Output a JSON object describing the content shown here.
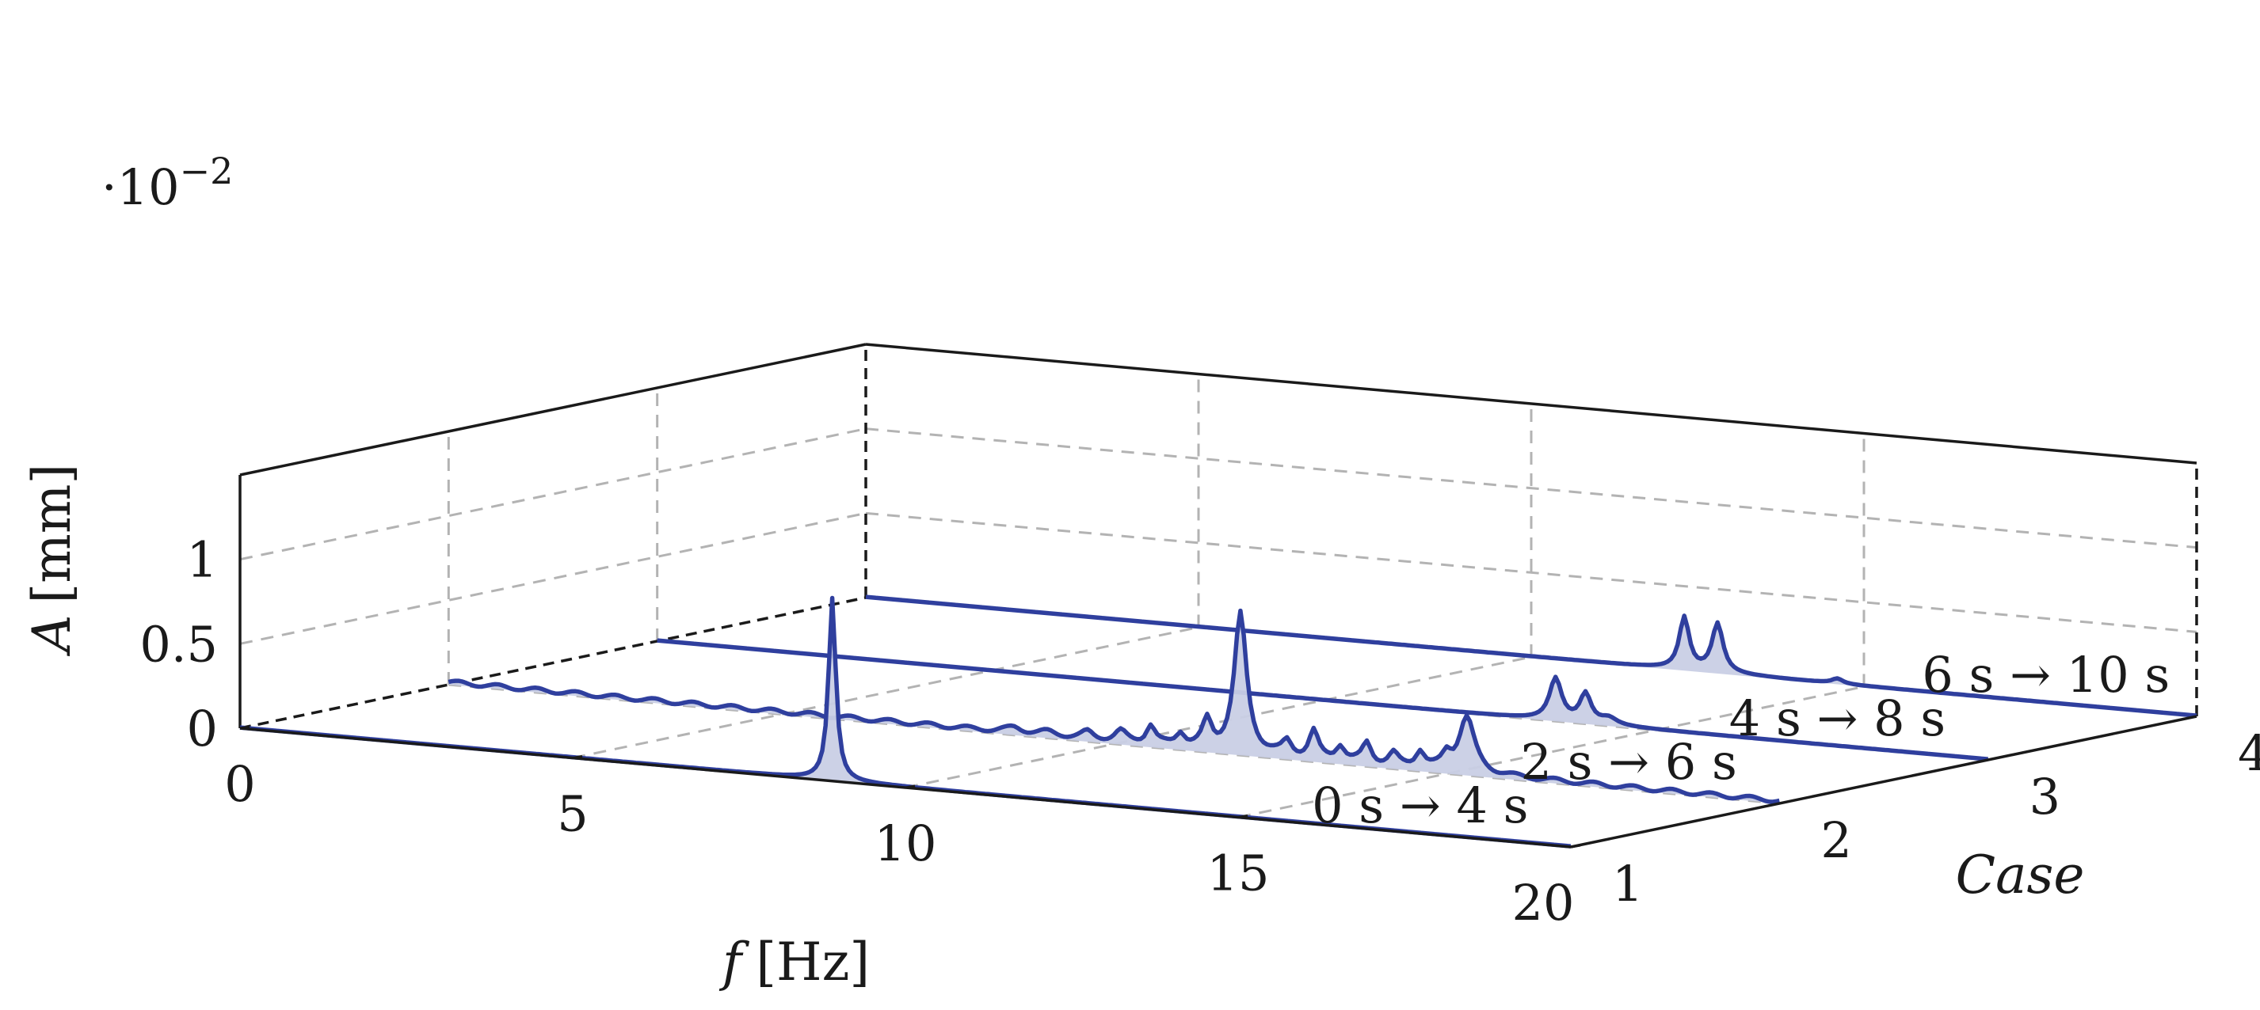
{
  "chart_data": {
    "type": "area",
    "title": "",
    "projection": "3d-waterfall",
    "multiplier_label": "·10",
    "multiplier_exponent": "−2",
    "axes": {
      "x": {
        "label_var": "f",
        "label_unit": "[Hz]",
        "range": [
          0,
          20
        ],
        "ticks": [
          0,
          5,
          10,
          15,
          20
        ],
        "tick_labels": [
          "0",
          "5",
          "10",
          "15",
          "20"
        ]
      },
      "y": {
        "label": "Case",
        "range": [
          1,
          4
        ],
        "ticks": [
          1,
          2,
          3,
          4
        ],
        "tick_labels": [
          "1",
          "2",
          "3",
          "4"
        ]
      },
      "z": {
        "label_var": "A",
        "label_unit": "[mm]",
        "range": [
          0,
          1.5
        ],
        "ticks": [
          0,
          0.5,
          1
        ],
        "tick_labels": [
          "0",
          "0.5",
          "1"
        ]
      }
    },
    "grid": true,
    "line_color": "#2f3f9e",
    "fill_color": "#c9cfe5",
    "series": [
      {
        "name": "0 s → 4 s",
        "name_parts": [
          "0",
          "s",
          "→",
          "4",
          "s"
        ],
        "case": 1,
        "peaks": [
          {
            "f": 8.9,
            "a": 1.08,
            "w": 0.13
          }
        ],
        "noise": []
      },
      {
        "name": "2 s → 6 s",
        "name_parts": [
          "2",
          "s",
          "→",
          "6",
          "s"
        ],
        "case": 2,
        "peaks": [
          {
            "f": 8.5,
            "a": 0.03,
            "w": 0.3
          },
          {
            "f": 9.0,
            "a": 0.02,
            "w": 0.3
          },
          {
            "f": 9.6,
            "a": 0.04,
            "w": 0.2
          },
          {
            "f": 10.1,
            "a": 0.06,
            "w": 0.2
          },
          {
            "f": 10.55,
            "a": 0.11,
            "w": 0.16
          },
          {
            "f": 11.0,
            "a": 0.08,
            "w": 0.16
          },
          {
            "f": 11.4,
            "a": 0.16,
            "w": 0.16
          },
          {
            "f": 11.9,
            "a": 0.82,
            "w": 0.22
          },
          {
            "f": 12.6,
            "a": 0.08,
            "w": 0.16
          },
          {
            "f": 13.0,
            "a": 0.16,
            "w": 0.16
          },
          {
            "f": 13.4,
            "a": 0.09,
            "w": 0.16
          },
          {
            "f": 13.8,
            "a": 0.12,
            "w": 0.16
          },
          {
            "f": 14.2,
            "a": 0.07,
            "w": 0.16
          },
          {
            "f": 14.6,
            "a": 0.1,
            "w": 0.16
          },
          {
            "f": 15.0,
            "a": 0.08,
            "w": 0.16
          },
          {
            "f": 15.3,
            "a": 0.33,
            "w": 0.28
          }
        ],
        "noise": [
          0.012,
          1.7
        ]
      },
      {
        "name": "4 s → 8 s",
        "name_parts": [
          "4",
          "s",
          "→",
          "8",
          "s"
        ],
        "case": 3,
        "peaks": [
          {
            "f": 13.5,
            "a": 0.25,
            "w": 0.22
          },
          {
            "f": 13.95,
            "a": 0.17,
            "w": 0.2
          },
          {
            "f": 14.3,
            "a": 0.04,
            "w": 0.3
          }
        ],
        "noise": []
      },
      {
        "name": "6 s → 10 s",
        "name_parts": [
          "6",
          "s",
          "→",
          "10",
          "s"
        ],
        "case": 4,
        "peaks": [
          {
            "f": 12.3,
            "a": 0.31,
            "w": 0.18
          },
          {
            "f": 12.8,
            "a": 0.29,
            "w": 0.2
          },
          {
            "f": 14.6,
            "a": 0.03,
            "w": 0.2
          }
        ],
        "noise": []
      }
    ]
  }
}
